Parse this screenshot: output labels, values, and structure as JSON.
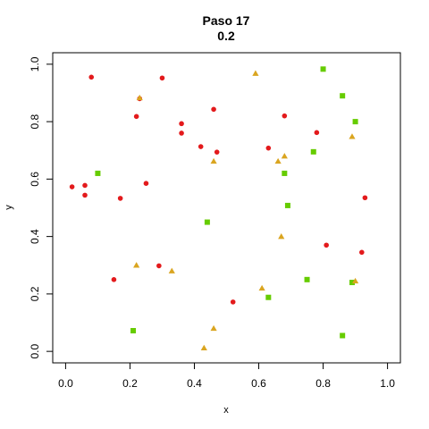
{
  "chart_data": {
    "type": "scatter",
    "title": "Paso 17",
    "subtitle": "0.2",
    "xlabel": "x",
    "ylabel": "y",
    "xlim": [
      -0.04,
      1.04
    ],
    "ylim": [
      -0.04,
      1.04
    ],
    "xticks": [
      "0.0",
      "0.2",
      "0.4",
      "0.6",
      "0.8",
      "1.0"
    ],
    "yticks": [
      "0.0",
      "0.2",
      "0.4",
      "0.6",
      "0.8",
      "1.0"
    ],
    "grid": false,
    "series": [
      {
        "marker": "circle",
        "color": "#e31a1c",
        "points": [
          [
            0.08,
            0.955
          ],
          [
            0.3,
            0.952
          ],
          [
            0.23,
            0.88
          ],
          [
            0.22,
            0.818
          ],
          [
            0.46,
            0.843
          ],
          [
            0.36,
            0.793
          ],
          [
            0.36,
            0.76
          ],
          [
            0.42,
            0.713
          ],
          [
            0.47,
            0.694
          ],
          [
            0.63,
            0.708
          ],
          [
            0.68,
            0.82
          ],
          [
            0.78,
            0.762
          ],
          [
            0.02,
            0.573
          ],
          [
            0.06,
            0.578
          ],
          [
            0.06,
            0.544
          ],
          [
            0.17,
            0.533
          ],
          [
            0.25,
            0.585
          ],
          [
            0.93,
            0.535
          ],
          [
            0.81,
            0.37
          ],
          [
            0.92,
            0.345
          ],
          [
            0.29,
            0.298
          ],
          [
            0.15,
            0.25
          ],
          [
            0.52,
            0.172
          ]
        ]
      },
      {
        "marker": "square",
        "color": "#66cc00",
        "points": [
          [
            0.8,
            0.983
          ],
          [
            0.86,
            0.89
          ],
          [
            0.9,
            0.8
          ],
          [
            0.1,
            0.62
          ],
          [
            0.77,
            0.695
          ],
          [
            0.68,
            0.62
          ],
          [
            0.69,
            0.508
          ],
          [
            0.44,
            0.45
          ],
          [
            0.75,
            0.25
          ],
          [
            0.89,
            0.24
          ],
          [
            0.63,
            0.188
          ],
          [
            0.21,
            0.072
          ],
          [
            0.86,
            0.055
          ]
        ]
      },
      {
        "marker": "triangle",
        "color": "#daa520",
        "points": [
          [
            0.59,
            0.968
          ],
          [
            0.23,
            0.883
          ],
          [
            0.89,
            0.748
          ],
          [
            0.46,
            0.662
          ],
          [
            0.66,
            0.662
          ],
          [
            0.68,
            0.68
          ],
          [
            0.67,
            0.4
          ],
          [
            0.22,
            0.3
          ],
          [
            0.33,
            0.28
          ],
          [
            0.61,
            0.22
          ],
          [
            0.9,
            0.245
          ],
          [
            0.46,
            0.08
          ],
          [
            0.43,
            0.012
          ]
        ]
      }
    ]
  }
}
